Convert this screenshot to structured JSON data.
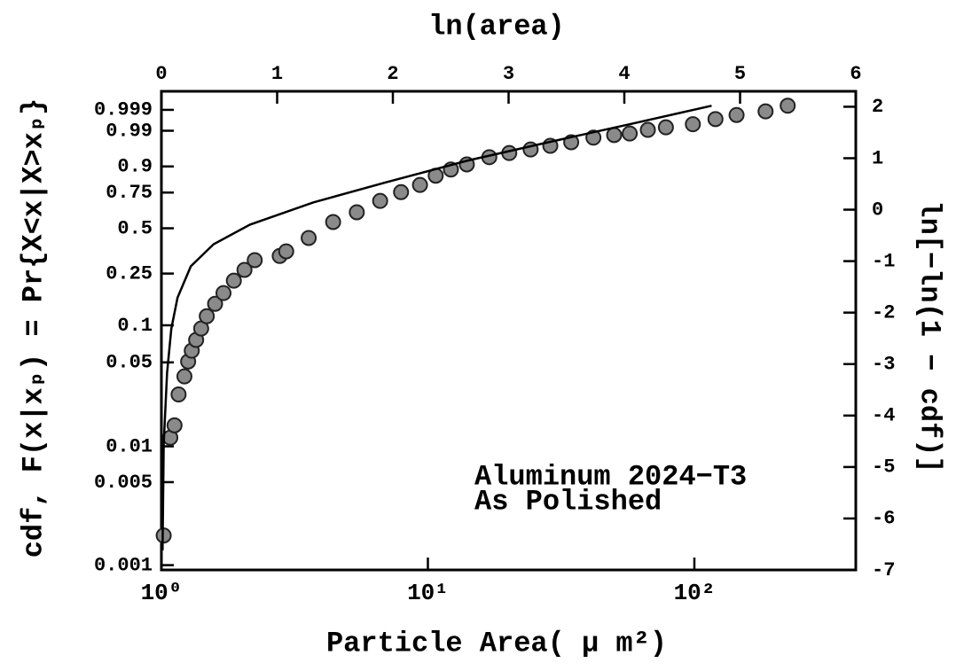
{
  "chart_data": {
    "type": "scatter",
    "xlabel": "Particle Area( μ m²)",
    "x2label": "ln(area)",
    "ylabel": "cdf, F(x|xₚ) = Pr{X<x|X>xₚ}",
    "y2label": "ln[−ln(1 − cdf)]",
    "annotation": [
      "Aluminum 2024−T3",
      "As Polished"
    ],
    "xscale": "log",
    "xlim": [
      1,
      403.4
    ],
    "xticks": [
      {
        "value": 1,
        "label": "10⁰"
      },
      {
        "value": 10,
        "label": "10¹"
      },
      {
        "value": 100,
        "label": "10²"
      }
    ],
    "x2lim": [
      0,
      6
    ],
    "x2ticks": [
      0,
      1,
      2,
      3,
      4,
      5,
      6
    ],
    "yscale": "weibull",
    "ylim": [
      0.000911,
      0.99995
    ],
    "yticks": [
      0.001,
      0.005,
      0.01,
      0.05,
      0.1,
      0.25,
      0.5,
      0.75,
      0.9,
      0.99,
      0.999
    ],
    "y2lim": [
      -7,
      2.3
    ],
    "y2ticks": [
      -7,
      -6,
      -5,
      -4,
      -3,
      -2,
      -1,
      0,
      1,
      2
    ],
    "series": [
      {
        "style": "markers",
        "axis": "y2",
        "color": "#8a8a8a",
        "x": [
          1.02,
          1.08,
          1.12,
          1.16,
          1.22,
          1.26,
          1.3,
          1.35,
          1.41,
          1.48,
          1.59,
          1.71,
          1.87,
          2.05,
          2.24,
          2.78,
          2.94,
          3.57,
          4.41,
          5.41,
          6.62,
          7.93,
          9.34,
          10.7,
          12.2,
          14.0,
          17.0,
          20.2,
          24.3,
          28.8,
          34.5,
          41.8,
          50.0,
          57.2,
          66.9,
          78.2,
          98.7,
          120,
          144,
          185,
          224
        ],
        "values": [
          -6.33,
          -4.43,
          -4.19,
          -3.59,
          -3.24,
          -2.95,
          -2.74,
          -2.53,
          -2.31,
          -2.07,
          -1.83,
          -1.62,
          -1.38,
          -1.17,
          -0.98,
          -0.9,
          -0.81,
          -0.55,
          -0.24,
          -0.05,
          0.17,
          0.34,
          0.48,
          0.66,
          0.78,
          0.88,
          1.02,
          1.1,
          1.17,
          1.24,
          1.31,
          1.4,
          1.45,
          1.48,
          1.55,
          1.6,
          1.66,
          1.76,
          1.84,
          1.91,
          2.02
        ]
      },
      {
        "style": "line",
        "axis": "y2",
        "color": "#000000",
        "x": [
          1.01,
          1.02,
          1.05,
          1.09,
          1.15,
          1.29,
          1.57,
          2.15,
          3.71,
          6.94,
          14.0,
          28.3,
          57.1,
          116
        ],
        "values": [
          -6.62,
          -4.55,
          -3.17,
          -2.31,
          -1.71,
          -1.1,
          -0.67,
          -0.29,
          0.14,
          0.53,
          0.95,
          1.31,
          1.66,
          2.02
        ]
      }
    ]
  }
}
